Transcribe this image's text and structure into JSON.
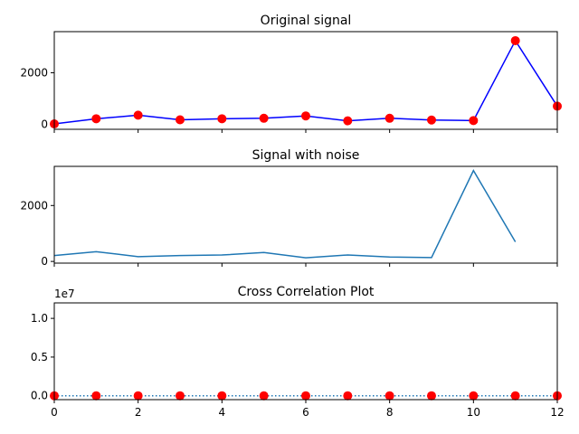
{
  "chart_data": [
    {
      "type": "line",
      "title": "Original signal",
      "x": [
        0,
        1,
        2,
        3,
        4,
        5,
        6,
        7,
        8,
        9,
        10,
        11,
        12
      ],
      "series": [
        {
          "values": [
            10,
            210,
            350,
            170,
            210,
            230,
            320,
            130,
            230,
            160,
            140,
            3250,
            700
          ],
          "color": "#0000ff",
          "marker_color": "#ff0000",
          "marker": "circle",
          "linestyle": "solid"
        }
      ],
      "xlim": [
        0,
        12
      ],
      "ylim": [
        -200,
        3600
      ],
      "yticks": [
        0,
        2000
      ],
      "ytick_labels": [
        "0",
        "2000"
      ],
      "xticks": [
        0,
        2,
        4,
        6,
        8,
        10,
        12
      ],
      "xticks_labeled": false
    },
    {
      "type": "line",
      "title": "Signal with noise",
      "x": [
        0,
        1,
        2,
        3,
        4,
        5,
        6,
        7,
        8,
        9,
        10,
        11
      ],
      "series": [
        {
          "values": [
            210,
            350,
            170,
            210,
            230,
            320,
            130,
            230,
            160,
            140,
            3250,
            700
          ],
          "color": "#1f77b4",
          "linestyle": "solid"
        }
      ],
      "xlim": [
        0,
        12
      ],
      "ylim": [
        -60,
        3400
      ],
      "yticks": [
        0,
        2000
      ],
      "ytick_labels": [
        "0",
        "2000"
      ],
      "xticks": [
        0,
        2,
        4,
        6,
        8,
        10,
        12
      ],
      "xticks_labeled": false
    },
    {
      "type": "line",
      "title": "Cross Correlation Plot",
      "x": [
        0,
        1,
        2,
        3,
        4,
        5,
        6,
        7,
        8,
        9,
        10,
        11,
        12
      ],
      "series": [
        {
          "values": [
            0,
            0,
            0,
            0,
            0,
            0,
            0,
            0,
            0,
            0,
            0,
            0,
            0
          ],
          "color": "#1f77b4",
          "marker_color": "#ff0000",
          "marker": "circle",
          "linestyle": "dotted"
        }
      ],
      "xlim": [
        0,
        12
      ],
      "ylim": [
        -0.05,
        1.2
      ],
      "yticks": [
        0,
        0.5,
        1.0
      ],
      "ytick_labels": [
        "0.0",
        "0.5",
        "1.0"
      ],
      "y_offset_label": "1e7",
      "xticks": [
        0,
        2,
        4,
        6,
        8,
        10,
        12
      ],
      "xtick_labels": [
        "0",
        "2",
        "4",
        "6",
        "8",
        "10",
        "12"
      ],
      "xticks_labeled": true
    }
  ]
}
